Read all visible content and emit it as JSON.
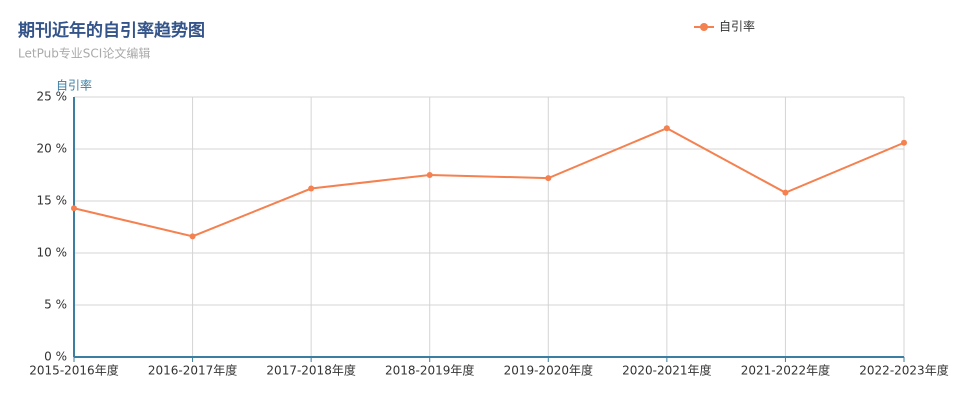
{
  "chart_data": {
    "type": "line",
    "title": "期刊近年的自引率趋势图",
    "subtitle": "LetPub专业SCI论文编辑",
    "y_axis_label": "自引率",
    "categories": [
      "2015-2016年度",
      "2016-2017年度",
      "2017-2018年度",
      "2018-2019年度",
      "2019-2020年度",
      "2020-2021年度",
      "2021-2022年度",
      "2022-2023年度"
    ],
    "series": [
      {
        "name": "自引率",
        "color": "#f4814f",
        "values": [
          14.3,
          11.6,
          16.2,
          17.5,
          17.2,
          22.0,
          15.8,
          20.6
        ]
      }
    ],
    "ylim": [
      0,
      25
    ],
    "yticks": [
      {
        "value": 0,
        "label": "0 %"
      },
      {
        "value": 5,
        "label": "5 %"
      },
      {
        "value": 10,
        "label": "10 %"
      },
      {
        "value": 15,
        "label": "15 %"
      },
      {
        "value": 20,
        "label": "20 %"
      },
      {
        "value": 25,
        "label": "25 %"
      }
    ],
    "grid": true,
    "legend": "top-right"
  }
}
